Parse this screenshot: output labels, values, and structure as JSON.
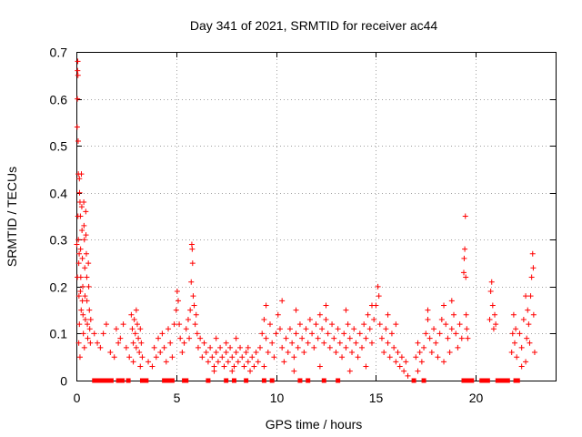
{
  "chart_data": {
    "type": "scatter",
    "title": "Day 341 of 2021, SRMTID for receiver ac44",
    "xlabel": "GPS time / hours",
    "ylabel": "SRMTID / TECUs",
    "xlim": [
      0,
      24
    ],
    "ylim": [
      0,
      0.7
    ],
    "xticks": [
      0,
      5,
      10,
      15,
      20
    ],
    "xtick_labels": [
      "0",
      "5",
      "10",
      "15",
      "20"
    ],
    "yticks": [
      0,
      0.1,
      0.2,
      0.3,
      0.4,
      0.5,
      0.6,
      0.7
    ],
    "ytick_labels": [
      "0",
      "0.1",
      "0.2",
      "0.3",
      "0.4",
      "0.5",
      "0.6",
      "0.7"
    ],
    "grid": true,
    "marker": "plus",
    "color": "#ff0000",
    "zero_markers_x": [
      0.9,
      1.0,
      1.1,
      1.2,
      1.3,
      1.4,
      1.5,
      1.6,
      1.75,
      2.1,
      2.3,
      2.6,
      3.3,
      3.5,
      4.4,
      4.6,
      4.8,
      5.4,
      5.5,
      6.6,
      7.5,
      7.9,
      8.5,
      9.4,
      9.8,
      11.2,
      11.6,
      12.4,
      13.1,
      16.9,
      17.4,
      19.4,
      19.6,
      19.8,
      20.3,
      20.4,
      20.5,
      20.6,
      21.1,
      21.2,
      21.3,
      21.4,
      21.5,
      21.6,
      22.0,
      22.1
    ],
    "series": [
      {
        "name": "SRMTID",
        "points": [
          [
            0.02,
            0.29
          ],
          [
            0.04,
            0.54
          ],
          [
            0.05,
            0.6
          ],
          [
            0.06,
            0.66
          ],
          [
            0.07,
            0.68
          ],
          [
            0.08,
            0.65
          ],
          [
            0.09,
            0.51
          ],
          [
            0.1,
            0.44
          ],
          [
            0.1,
            0.3
          ],
          [
            0.12,
            0.25
          ],
          [
            0.13,
            0.18
          ],
          [
            0.15,
            0.43
          ],
          [
            0.16,
            0.4
          ],
          [
            0.18,
            0.38
          ],
          [
            0.2,
            0.35
          ],
          [
            0.21,
            0.28
          ],
          [
            0.22,
            0.22
          ],
          [
            0.24,
            0.15
          ],
          [
            0.25,
            0.44
          ],
          [
            0.27,
            0.37
          ],
          [
            0.28,
            0.32
          ],
          [
            0.3,
            0.26
          ],
          [
            0.32,
            0.2
          ],
          [
            0.33,
            0.14
          ],
          [
            0.35,
            0.1
          ],
          [
            0.37,
            0.38
          ],
          [
            0.38,
            0.33
          ],
          [
            0.4,
            0.3
          ],
          [
            0.42,
            0.24
          ],
          [
            0.43,
            0.18
          ],
          [
            0.45,
            0.13
          ],
          [
            0.47,
            0.36
          ],
          [
            0.48,
            0.31
          ],
          [
            0.5,
            0.27
          ],
          [
            0.52,
            0.22
          ],
          [
            0.53,
            0.17
          ],
          [
            0.55,
            0.12
          ],
          [
            0.57,
            0.09
          ],
          [
            0.6,
            0.25
          ],
          [
            0.62,
            0.2
          ],
          [
            0.65,
            0.15
          ],
          [
            0.67,
            0.11
          ],
          [
            0.7,
            0.08
          ],
          [
            0.72,
            0.13
          ],
          [
            0.15,
            0.12
          ],
          [
            0.12,
            0.08
          ],
          [
            0.18,
            0.05
          ],
          [
            0.3,
            0.17
          ],
          [
            0.4,
            0.07
          ],
          [
            0.05,
            0.22
          ],
          [
            0.08,
            0.35
          ],
          [
            0.14,
            0.27
          ],
          [
            0.2,
            0.19
          ],
          [
            0.9,
            0.1
          ],
          [
            1.05,
            0.08
          ],
          [
            1.2,
            0.07
          ],
          [
            1.35,
            0.1
          ],
          [
            1.5,
            0.12
          ],
          [
            1.7,
            0.06
          ],
          [
            1.9,
            0.05
          ],
          [
            2.0,
            0.11
          ],
          [
            2.1,
            0.08
          ],
          [
            2.2,
            0.09
          ],
          [
            2.35,
            0.12
          ],
          [
            2.5,
            0.07
          ],
          [
            2.65,
            0.05
          ],
          [
            2.75,
            0.14
          ],
          [
            2.8,
            0.11
          ],
          [
            2.85,
            0.08
          ],
          [
            2.9,
            0.13
          ],
          [
            2.95,
            0.1
          ],
          [
            3.0,
            0.07
          ],
          [
            3.05,
            0.12
          ],
          [
            3.1,
            0.09
          ],
          [
            3.15,
            0.06
          ],
          [
            3.2,
            0.11
          ],
          [
            3.25,
            0.08
          ],
          [
            3.3,
            0.05
          ],
          [
            2.85,
            0.04
          ],
          [
            3.0,
            0.15
          ],
          [
            3.2,
            0.03
          ],
          [
            3.6,
            0.04
          ],
          [
            3.8,
            0.03
          ],
          [
            3.9,
            0.07
          ],
          [
            4.0,
            0.05
          ],
          [
            4.1,
            0.09
          ],
          [
            4.2,
            0.06
          ],
          [
            4.3,
            0.1
          ],
          [
            4.4,
            0.07
          ],
          [
            4.5,
            0.04
          ],
          [
            4.6,
            0.11
          ],
          [
            4.7,
            0.08
          ],
          [
            4.8,
            0.05
          ],
          [
            4.9,
            0.12
          ],
          [
            5.0,
            0.15
          ],
          [
            5.05,
            0.19
          ],
          [
            5.1,
            0.17
          ],
          [
            5.15,
            0.12
          ],
          [
            5.2,
            0.09
          ],
          [
            5.3,
            0.06
          ],
          [
            5.4,
            0.08
          ],
          [
            5.5,
            0.11
          ],
          [
            5.6,
            0.13
          ],
          [
            5.65,
            0.09
          ],
          [
            5.7,
            0.15
          ],
          [
            5.75,
            0.21
          ],
          [
            5.78,
            0.29
          ],
          [
            5.8,
            0.28
          ],
          [
            5.82,
            0.25
          ],
          [
            5.85,
            0.18
          ],
          [
            5.9,
            0.16
          ],
          [
            5.95,
            0.12
          ],
          [
            6.0,
            0.14
          ],
          [
            6.05,
            0.1
          ],
          [
            6.1,
            0.07
          ],
          [
            6.2,
            0.09
          ],
          [
            6.3,
            0.05
          ],
          [
            6.4,
            0.08
          ],
          [
            6.5,
            0.06
          ],
          [
            6.6,
            0.04
          ],
          [
            6.7,
            0.07
          ],
          [
            6.8,
            0.05
          ],
          [
            6.9,
            0.03
          ],
          [
            7.0,
            0.06
          ],
          [
            7.1,
            0.04
          ],
          [
            7.2,
            0.07
          ],
          [
            7.3,
            0.05
          ],
          [
            7.4,
            0.03
          ],
          [
            7.5,
            0.06
          ],
          [
            7.6,
            0.04
          ],
          [
            7.7,
            0.07
          ],
          [
            7.8,
            0.05
          ],
          [
            7.9,
            0.03
          ],
          [
            8.0,
            0.06
          ],
          [
            8.1,
            0.04
          ],
          [
            8.2,
            0.07
          ],
          [
            8.3,
            0.05
          ],
          [
            8.4,
            0.03
          ],
          [
            8.5,
            0.06
          ],
          [
            8.6,
            0.04
          ],
          [
            8.7,
            0.02
          ],
          [
            8.8,
            0.05
          ],
          [
            8.9,
            0.03
          ],
          [
            9.0,
            0.06
          ],
          [
            9.1,
            0.04
          ],
          [
            7.0,
            0.09
          ],
          [
            7.5,
            0.08
          ],
          [
            8.0,
            0.09
          ],
          [
            8.6,
            0.07
          ],
          [
            6.9,
            0.02
          ],
          [
            7.8,
            0.02
          ],
          [
            9.2,
            0.07
          ],
          [
            9.3,
            0.1
          ],
          [
            9.4,
            0.13
          ],
          [
            9.5,
            0.09
          ],
          [
            9.6,
            0.06
          ],
          [
            9.7,
            0.12
          ],
          [
            9.8,
            0.08
          ],
          [
            9.9,
            0.05
          ],
          [
            10.0,
            0.1
          ],
          [
            10.1,
            0.14
          ],
          [
            10.2,
            0.11
          ],
          [
            10.3,
            0.07
          ],
          [
            10.4,
            0.04
          ],
          [
            10.5,
            0.09
          ],
          [
            10.6,
            0.06
          ],
          [
            10.7,
            0.11
          ],
          [
            10.8,
            0.08
          ],
          [
            10.9,
            0.05
          ],
          [
            11.0,
            0.1
          ],
          [
            11.1,
            0.07
          ],
          [
            11.2,
            0.12
          ],
          [
            11.3,
            0.09
          ],
          [
            11.4,
            0.06
          ],
          [
            11.5,
            0.11
          ],
          [
            11.6,
            0.08
          ],
          [
            11.7,
            0.13
          ],
          [
            11.8,
            0.1
          ],
          [
            11.9,
            0.07
          ],
          [
            12.0,
            0.12
          ],
          [
            12.1,
            0.09
          ],
          [
            12.2,
            0.14
          ],
          [
            12.3,
            0.11
          ],
          [
            12.4,
            0.08
          ],
          [
            12.5,
            0.13
          ],
          [
            12.6,
            0.1
          ],
          [
            12.7,
            0.07
          ],
          [
            12.8,
            0.12
          ],
          [
            12.9,
            0.09
          ],
          [
            13.0,
            0.06
          ],
          [
            13.1,
            0.11
          ],
          [
            13.2,
            0.08
          ],
          [
            13.3,
            0.05
          ],
          [
            13.4,
            0.1
          ],
          [
            13.5,
            0.07
          ],
          [
            13.6,
            0.12
          ],
          [
            13.7,
            0.09
          ],
          [
            13.8,
            0.06
          ],
          [
            13.9,
            0.11
          ],
          [
            14.0,
            0.08
          ],
          [
            14.1,
            0.05
          ],
          [
            14.2,
            0.1
          ],
          [
            14.3,
            0.07
          ],
          [
            14.4,
            0.12
          ],
          [
            14.5,
            0.09
          ],
          [
            14.6,
            0.14
          ],
          [
            14.7,
            0.11
          ],
          [
            14.8,
            0.08
          ],
          [
            14.9,
            0.13
          ],
          [
            15.0,
            0.16
          ],
          [
            15.1,
            0.2
          ],
          [
            15.15,
            0.18
          ],
          [
            15.2,
            0.12
          ],
          [
            15.3,
            0.09
          ],
          [
            15.4,
            0.06
          ],
          [
            15.5,
            0.11
          ],
          [
            15.6,
            0.08
          ],
          [
            15.7,
            0.05
          ],
          [
            15.8,
            0.1
          ],
          [
            15.9,
            0.07
          ],
          [
            16.0,
            0.04
          ],
          [
            16.1,
            0.06
          ],
          [
            16.2,
            0.03
          ],
          [
            16.3,
            0.05
          ],
          [
            16.4,
            0.02
          ],
          [
            16.5,
            0.04
          ],
          [
            16.6,
            0.01
          ],
          [
            9.5,
            0.16
          ],
          [
            10.3,
            0.17
          ],
          [
            11.0,
            0.15
          ],
          [
            12.5,
            0.16
          ],
          [
            13.5,
            0.15
          ],
          [
            14.8,
            0.16
          ],
          [
            9.4,
            0.03
          ],
          [
            10.9,
            0.02
          ],
          [
            12.2,
            0.03
          ],
          [
            13.7,
            0.02
          ],
          [
            14.5,
            0.03
          ],
          [
            15.6,
            0.14
          ],
          [
            16.0,
            0.12
          ],
          [
            17.0,
            0.05
          ],
          [
            17.1,
            0.08
          ],
          [
            17.2,
            0.06
          ],
          [
            17.3,
            0.04
          ],
          [
            17.4,
            0.07
          ],
          [
            17.5,
            0.1
          ],
          [
            17.6,
            0.13
          ],
          [
            17.7,
            0.09
          ],
          [
            17.8,
            0.06
          ],
          [
            17.9,
            0.11
          ],
          [
            18.0,
            0.08
          ],
          [
            18.1,
            0.05
          ],
          [
            18.2,
            0.1
          ],
          [
            18.3,
            0.13
          ],
          [
            18.4,
            0.16
          ],
          [
            18.5,
            0.12
          ],
          [
            18.6,
            0.09
          ],
          [
            18.7,
            0.06
          ],
          [
            18.8,
            0.11
          ],
          [
            18.9,
            0.14
          ],
          [
            19.0,
            0.1
          ],
          [
            19.1,
            0.07
          ],
          [
            19.2,
            0.12
          ],
          [
            19.3,
            0.09
          ],
          [
            17.1,
            0.02
          ],
          [
            17.6,
            0.15
          ],
          [
            18.4,
            0.04
          ],
          [
            18.8,
            0.17
          ],
          [
            19.4,
            0.23
          ],
          [
            19.42,
            0.26
          ],
          [
            19.45,
            0.28
          ],
          [
            19.48,
            0.35
          ],
          [
            19.5,
            0.22
          ],
          [
            19.52,
            0.14
          ],
          [
            19.55,
            0.11
          ],
          [
            19.6,
            0.09
          ],
          [
            20.7,
            0.13
          ],
          [
            20.75,
            0.19
          ],
          [
            20.8,
            0.21
          ],
          [
            20.85,
            0.16
          ],
          [
            20.9,
            0.11
          ],
          [
            20.95,
            0.14
          ],
          [
            21.0,
            0.12
          ],
          [
            21.8,
            0.06
          ],
          [
            21.85,
            0.1
          ],
          [
            21.9,
            0.14
          ],
          [
            21.95,
            0.08
          ],
          [
            22.0,
            0.11
          ],
          [
            22.05,
            0.05
          ],
          [
            22.2,
            0.1
          ],
          [
            22.3,
            0.07
          ],
          [
            22.4,
            0.13
          ],
          [
            22.5,
            0.04
          ],
          [
            22.55,
            0.09
          ],
          [
            22.6,
            0.15
          ],
          [
            22.65,
            0.12
          ],
          [
            22.7,
            0.08
          ],
          [
            22.75,
            0.18
          ],
          [
            22.8,
            0.22
          ],
          [
            22.85,
            0.27
          ],
          [
            22.88,
            0.24
          ],
          [
            22.9,
            0.14
          ],
          [
            22.95,
            0.06
          ],
          [
            22.5,
            0.18
          ],
          [
            22.3,
            0.03
          ]
        ]
      }
    ]
  }
}
